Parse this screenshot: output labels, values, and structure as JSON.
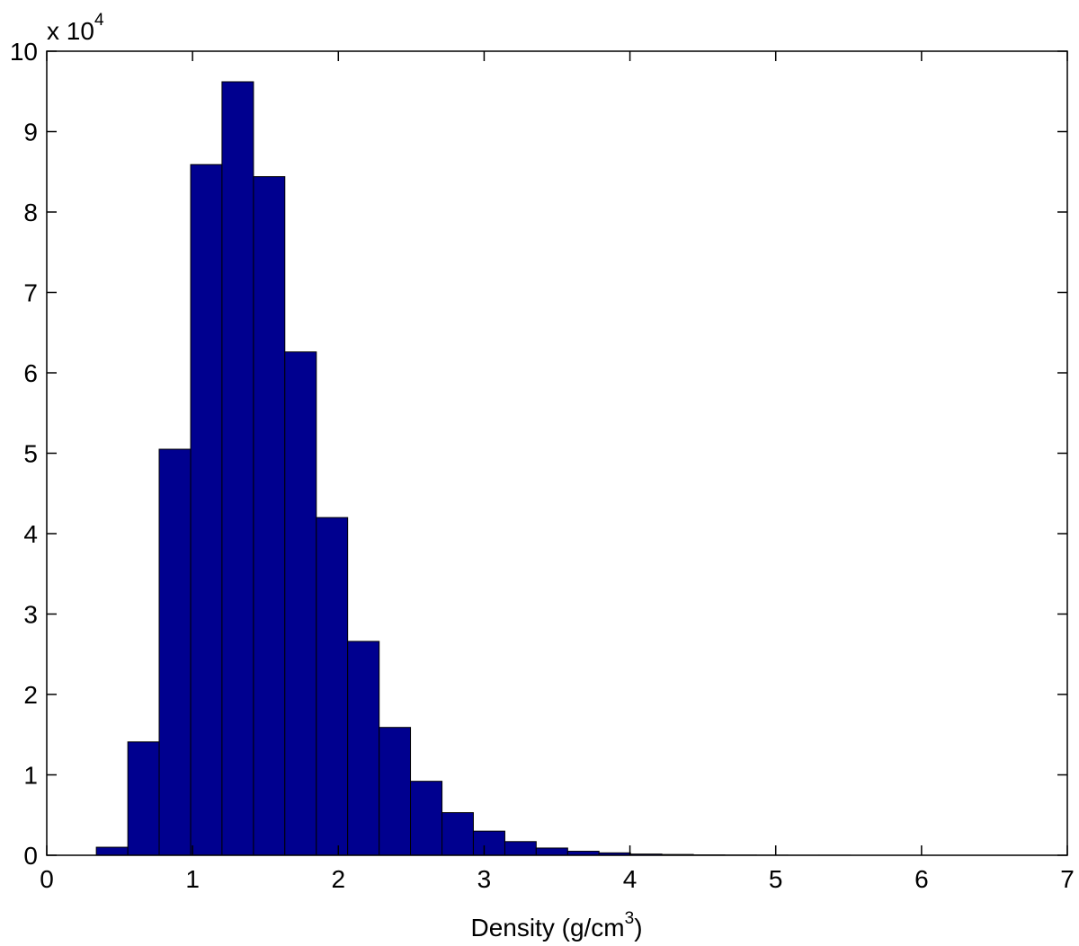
{
  "chart_data": {
    "type": "histogram",
    "xlabel": {
      "text": "Density (g/cm",
      "superscript": "3",
      "suffix": ")"
    },
    "y_multiplier": {
      "text": "x 10",
      "superscript": "4"
    },
    "bins": [
      0.34,
      0.556,
      0.771,
      0.987,
      1.202,
      1.418,
      1.633,
      1.849,
      2.064,
      2.28,
      2.495,
      2.711,
      2.926,
      3.142,
      3.357,
      3.573,
      3.788,
      4.004,
      4.219,
      4.435,
      4.65,
      4.866,
      5.081,
      5.297,
      5.512,
      5.728,
      5.943,
      6.159,
      6.374,
      6.59,
      6.805
    ],
    "values": [
      0.1,
      1.41,
      5.05,
      8.59,
      9.62,
      8.44,
      6.26,
      4.2,
      2.66,
      1.59,
      0.92,
      0.53,
      0.3,
      0.17,
      0.09,
      0.05,
      0.03,
      0.015,
      0.01,
      0.005,
      0.003,
      0.002,
      0.001,
      0.001,
      0,
      0,
      0,
      0,
      0,
      0
    ],
    "color": "#00008f",
    "xlim": [
      0,
      7
    ],
    "xticks": [
      0,
      1,
      2,
      3,
      4,
      5,
      6,
      7
    ],
    "ylim": [
      0,
      10
    ],
    "yticks": [
      0,
      1,
      2,
      3,
      4,
      5,
      6,
      7,
      8,
      9,
      10
    ],
    "grid": false
  }
}
